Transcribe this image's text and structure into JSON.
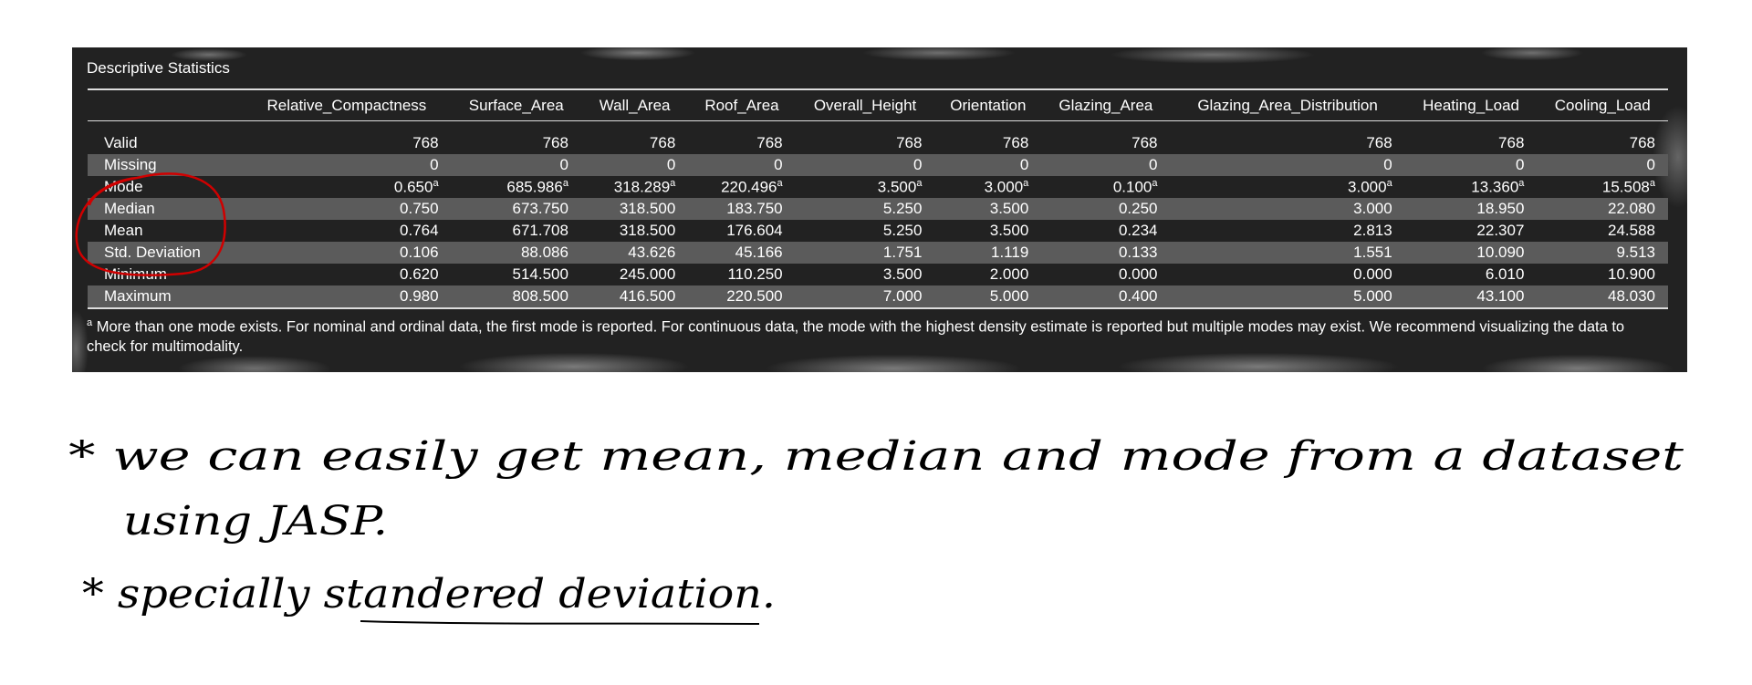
{
  "panel": {
    "title": "Descriptive Statistics",
    "columns": [
      "",
      "Relative_Compactness",
      "Surface_Area",
      "Wall_Area",
      "Roof_Area",
      "Overall_Height",
      "Orientation",
      "Glazing_Area",
      "Glazing_Area_Distribution",
      "Heating_Load",
      "Cooling_Load"
    ],
    "rows": [
      {
        "label": "Valid",
        "values": [
          "768",
          "768",
          "768",
          "768",
          "768",
          "768",
          "768",
          "768",
          "768",
          "768"
        ]
      },
      {
        "label": "Missing",
        "values": [
          "0",
          "0",
          "0",
          "0",
          "0",
          "0",
          "0",
          "0",
          "0",
          "0"
        ]
      },
      {
        "label": "Mode",
        "values": [
          "0.650",
          "685.986",
          "318.289",
          "220.496",
          "3.500",
          "3.000",
          "0.100",
          "3.000",
          "13.360",
          "15.508"
        ],
        "sup": "a"
      },
      {
        "label": "Median",
        "values": [
          "0.750",
          "673.750",
          "318.500",
          "183.750",
          "5.250",
          "3.500",
          "0.250",
          "3.000",
          "18.950",
          "22.080"
        ]
      },
      {
        "label": "Mean",
        "values": [
          "0.764",
          "671.708",
          "318.500",
          "176.604",
          "5.250",
          "3.500",
          "0.234",
          "2.813",
          "22.307",
          "24.588"
        ]
      },
      {
        "label": "Std. Deviation",
        "values": [
          "0.106",
          "88.086",
          "43.626",
          "45.166",
          "1.751",
          "1.119",
          "0.133",
          "1.551",
          "10.090",
          "9.513"
        ]
      },
      {
        "label": "Minimum",
        "values": [
          "0.620",
          "514.500",
          "245.000",
          "110.250",
          "3.500",
          "2.000",
          "0.000",
          "0.000",
          "6.010",
          "10.900"
        ]
      },
      {
        "label": "Maximum",
        "values": [
          "0.980",
          "808.500",
          "416.500",
          "220.500",
          "7.000",
          "5.000",
          "0.400",
          "5.000",
          "43.100",
          "48.030"
        ]
      }
    ],
    "footnote_marker": "a",
    "footnote": " More than one mode exists. For nominal and ordinal data, the first mode is reported. For continuous data, the mode with the highest density estimate is reported but multiple modes may exist. We recommend visualizing the data to check for multimodality."
  },
  "notes": {
    "line1": "* we can easily get mean, median and mode from a dataset",
    "line2": "using JASP.",
    "line3": "* specially standered deviation."
  },
  "colors": {
    "annotation": "#d00000",
    "panel_bg": "#222222",
    "alt_row": "#5b5b5b"
  }
}
